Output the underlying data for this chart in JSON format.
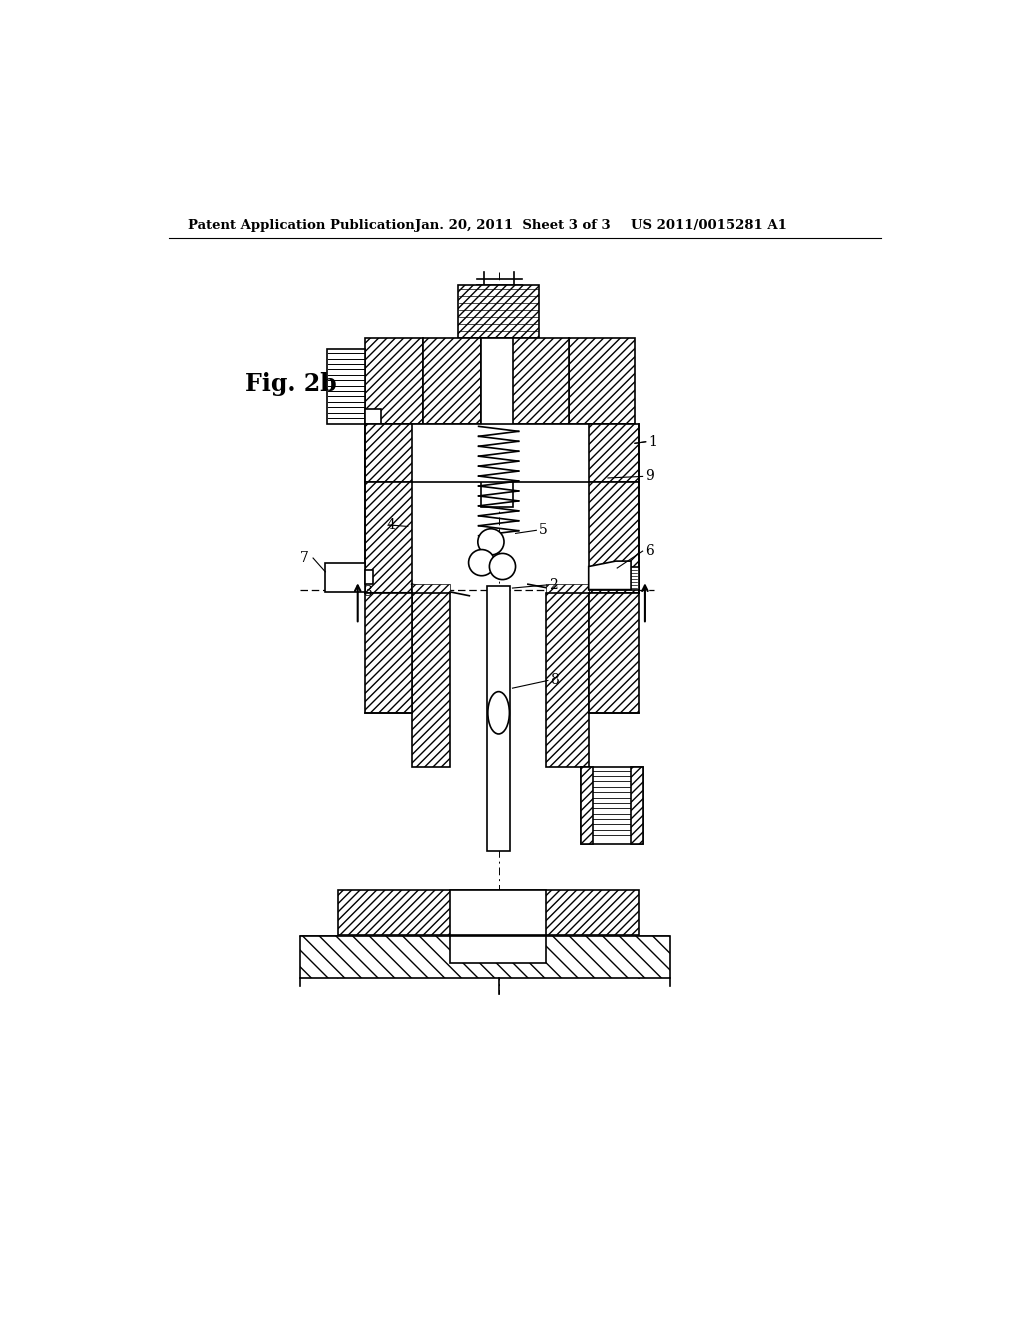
{
  "header_left": "Patent Application Publication",
  "header_mid": "Jan. 20, 2011  Sheet 3 of 3",
  "header_right": "US 2011/0015281 A1",
  "fig_label": "Fig. 2b",
  "background": "#ffffff",
  "lc": "#000000"
}
